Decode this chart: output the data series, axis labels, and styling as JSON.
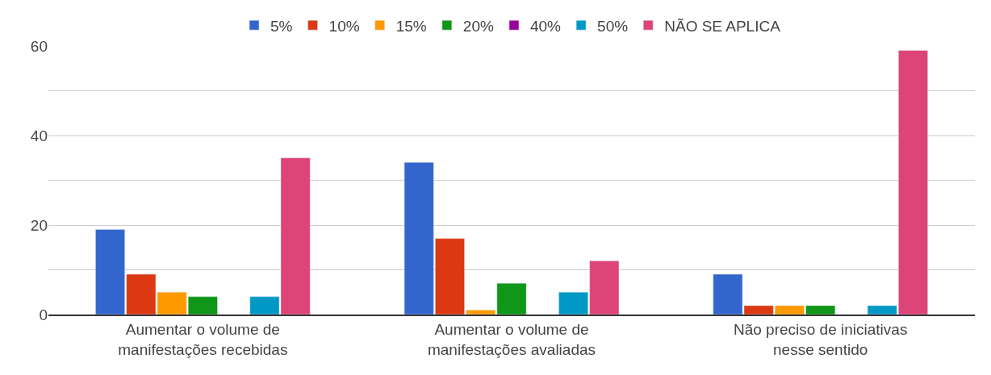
{
  "chart_data": {
    "type": "bar",
    "categories": [
      "Aumentar o volume de manifestações recebidas",
      "Aumentar o volume de manifestações avaliadas",
      "Não preciso de iniciativas nesse sentido"
    ],
    "series": [
      {
        "name": "5%",
        "color": "#3366cc",
        "values": [
          19,
          34,
          9
        ]
      },
      {
        "name": "10%",
        "color": "#dc3912",
        "values": [
          9,
          17,
          2
        ]
      },
      {
        "name": "15%",
        "color": "#ff9900",
        "values": [
          5,
          1,
          2
        ]
      },
      {
        "name": "20%",
        "color": "#109618",
        "values": [
          4,
          7,
          2
        ]
      },
      {
        "name": "40%",
        "color": "#990099",
        "values": [
          null,
          null,
          null
        ]
      },
      {
        "name": "50%",
        "color": "#0099c6",
        "values": [
          4,
          5,
          2
        ]
      },
      {
        "name": "NÃO SE APLICA",
        "color": "#dd4477",
        "values": [
          35,
          12,
          59
        ]
      }
    ],
    "ylim": [
      0,
      60
    ],
    "yticks": [
      0,
      {
        "value": 10,
        "label": null
      },
      20,
      {
        "value": 30,
        "label": null
      },
      40,
      {
        "value": 50,
        "label": null
      },
      60
    ],
    "grid": "y",
    "legend": "top"
  }
}
